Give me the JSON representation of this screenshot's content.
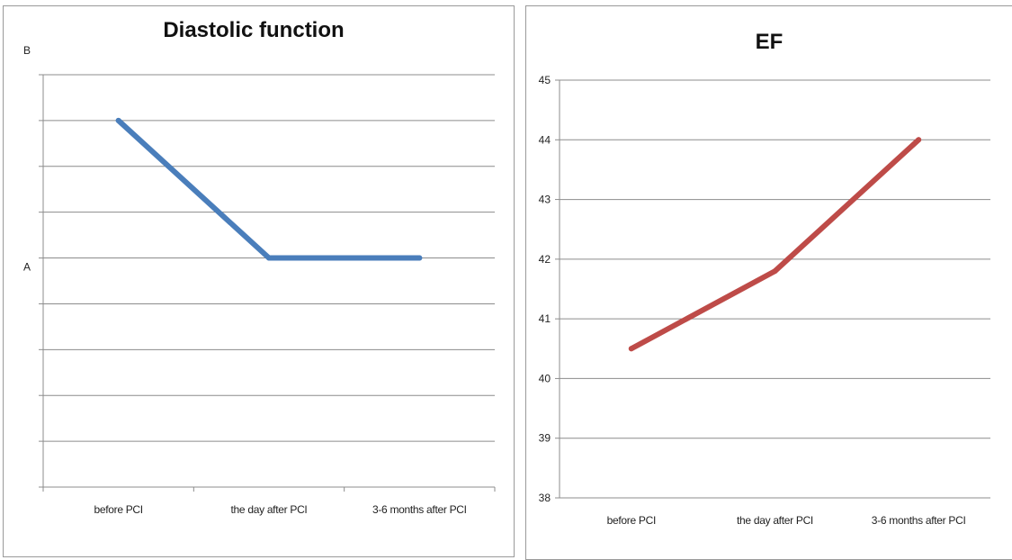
{
  "chart_data": [
    {
      "type": "line",
      "title": "Diastolic function",
      "categories": [
        "before PCI",
        "the day after PCI",
        "3-6 months after PCI"
      ],
      "y_tick_labels": [
        {
          "text": "B",
          "value": 9
        },
        {
          "text": "A",
          "value": 5
        }
      ],
      "ylim": [
        0,
        9
      ],
      "grid": true,
      "series": [
        {
          "values": [
            8,
            5,
            5
          ],
          "color": "#4a7ebb"
        }
      ]
    },
    {
      "type": "line",
      "title": "EF",
      "categories": [
        "before PCI",
        "the day after PCI",
        "3-6 months after PCI"
      ],
      "yticks": [
        "38",
        "39",
        "40",
        "41",
        "42",
        "43",
        "44",
        "45"
      ],
      "ylim": [
        38,
        45
      ],
      "grid": true,
      "series": [
        {
          "values": [
            40.5,
            41.8,
            44
          ],
          "color": "#be4b48"
        }
      ]
    }
  ]
}
